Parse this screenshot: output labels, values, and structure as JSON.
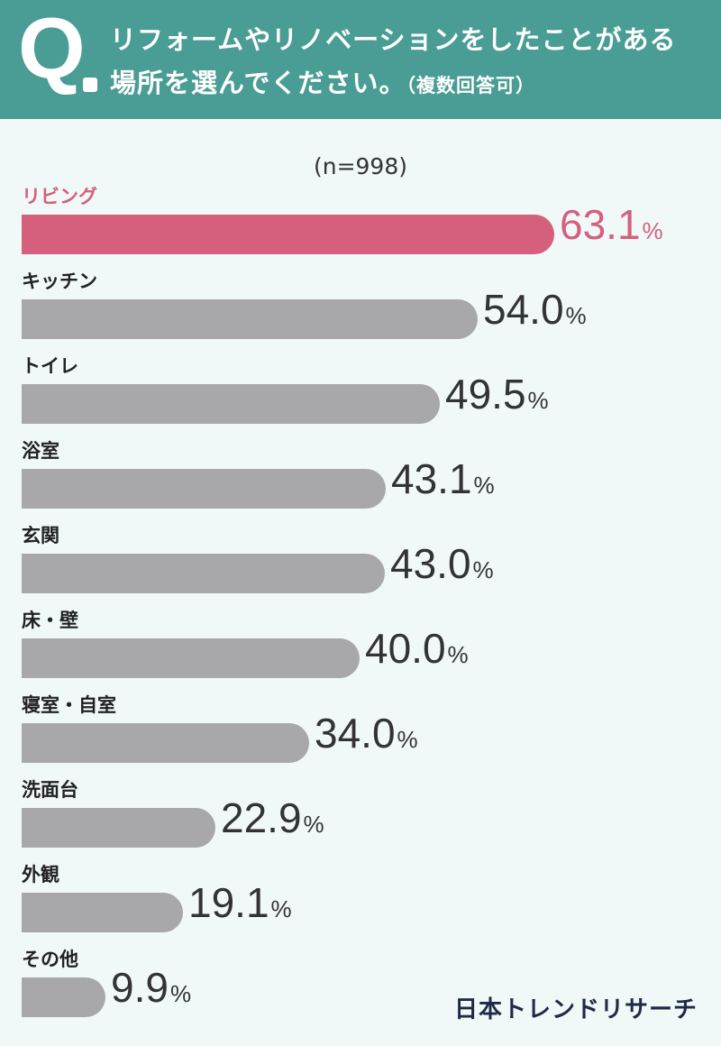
{
  "header": {
    "q_mark": "Q",
    "question_line1": "リフォームやリノベーションをしたことがある",
    "question_line2": "場所を選んでください。",
    "question_note": "（複数回答可）"
  },
  "sample_size": "(n=998)",
  "logo": "日本トレンドリサーチ",
  "colors": {
    "header_bg": "#4a9d94",
    "highlight": "#d5607e",
    "bar_default": "#a8a8ab",
    "background": "#f1f9f8"
  },
  "chart_data": {
    "type": "bar",
    "orientation": "horizontal",
    "unit": "%",
    "xlim": [
      0,
      100
    ],
    "highlight_index": 0,
    "categories": [
      "リビング",
      "キッチン",
      "トイレ",
      "浴室",
      "玄関",
      "床・壁",
      "寝室・自室",
      "洗面台",
      "外観",
      "その他"
    ],
    "values": [
      63.1,
      54.0,
      49.5,
      43.1,
      43.0,
      40.0,
      34.0,
      22.9,
      19.1,
      9.9
    ]
  }
}
